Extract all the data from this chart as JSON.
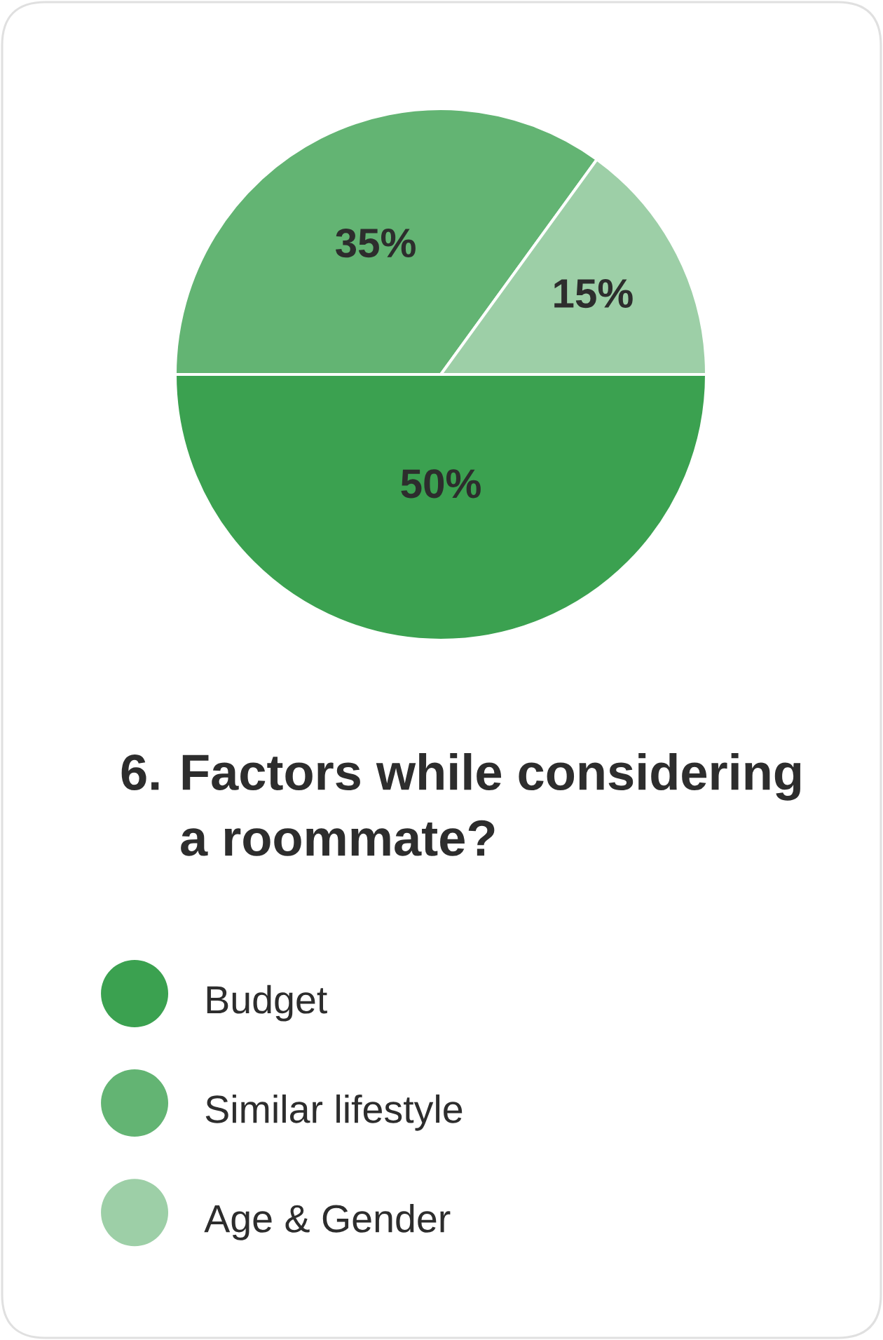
{
  "chart_data": {
    "type": "pie",
    "title": "6. Factors while considering\na roommate?",
    "categories": [
      "Budget",
      "Similar lifestyle",
      "Age & Gender"
    ],
    "values": [
      50,
      35,
      15
    ],
    "value_labels": [
      "50%",
      "35%",
      "15%"
    ],
    "colors": [
      "#3ba150",
      "#63b473",
      "#9dcfa7"
    ],
    "legend": "bottom"
  }
}
